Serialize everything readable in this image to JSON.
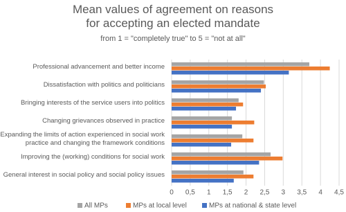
{
  "chart_data": {
    "type": "hbar",
    "title": "Mean values of agreement on reasons for accepting an elected mandate",
    "subtitle": "from 1 = \"completely true\" to 5 = \"not at all\"",
    "categories": [
      "Professional advancement and better income",
      "Dissatisfaction with politics and politicians",
      "Bringing interests of the service users into politics",
      "Changing grievances observed in practice",
      "Expanding the limits of action experienced in social work practice and changing the framework conditions",
      "Improving the (working) conditions for social work",
      "General interest in social policy and social policy issues"
    ],
    "series": [
      {
        "name": "All MPs",
        "color": "#a5a5a5",
        "values": [
          3.7,
          2.48,
          1.8,
          1.62,
          1.9,
          2.66,
          1.93
        ]
      },
      {
        "name": "MPs at local level",
        "color": "#ed7d31",
        "values": [
          4.25,
          2.53,
          1.92,
          2.22,
          2.2,
          2.98,
          2.2
        ]
      },
      {
        "name": "MPs at national & state level",
        "color": "#4472c4",
        "values": [
          3.15,
          2.4,
          1.73,
          1.62,
          1.6,
          2.35,
          1.67
        ]
      }
    ],
    "xlim": [
      0,
      4.5
    ],
    "xticks": [
      0,
      {
        "value": 0.5,
        "label": "0,5"
      },
      1,
      {
        "value": 1.5,
        "label": "1,5"
      },
      2,
      {
        "value": 2.5,
        "label": "2,5"
      },
      3,
      {
        "value": 3.5,
        "label": "3,5"
      },
      4,
      {
        "value": 4.5,
        "label": "4,5"
      }
    ],
    "grid": true
  }
}
